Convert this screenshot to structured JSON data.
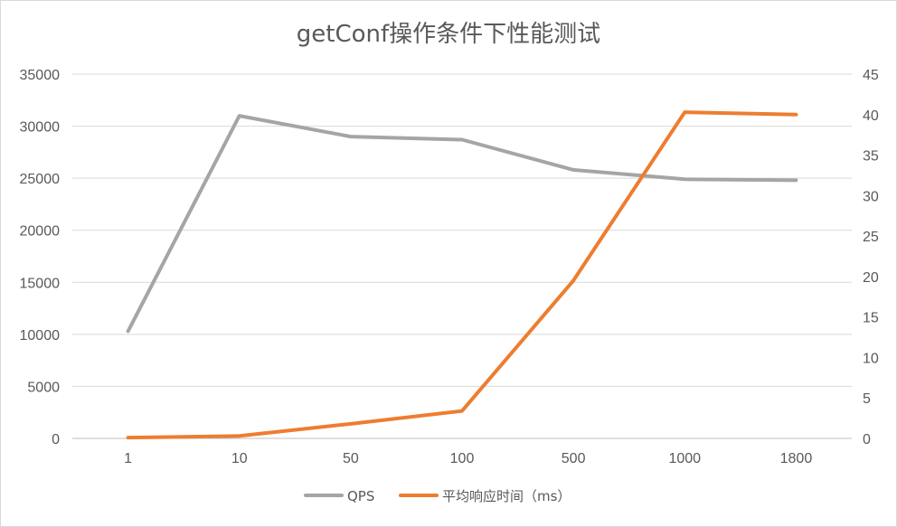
{
  "chart_data": {
    "type": "line",
    "title": "getConf操作条件下性能测试",
    "categories": [
      "1",
      "10",
      "50",
      "100",
      "500",
      "1000",
      "1800"
    ],
    "y_left": {
      "ylim": [
        0,
        35000
      ],
      "ticks": [
        "0",
        "5000",
        "10000",
        "15000",
        "20000",
        "25000",
        "30000",
        "35000"
      ]
    },
    "y_right": {
      "ylim": [
        0,
        45
      ],
      "ticks": [
        "0",
        "5",
        "10",
        "15",
        "20",
        "25",
        "30",
        "35",
        "40",
        "45"
      ]
    },
    "grid": true,
    "legend_position": "bottom",
    "series": [
      {
        "name": "QPS",
        "axis": "left",
        "color": "#a5a5a5",
        "values": [
          10300,
          31000,
          29000,
          28700,
          25800,
          24900,
          24800
        ]
      },
      {
        "name": "平均响应时间（ms）",
        "axis": "right",
        "color": "#ed7d31",
        "values": [
          0.1,
          0.3,
          1.8,
          3.4,
          19.5,
          40.3,
          40.0
        ]
      }
    ]
  }
}
